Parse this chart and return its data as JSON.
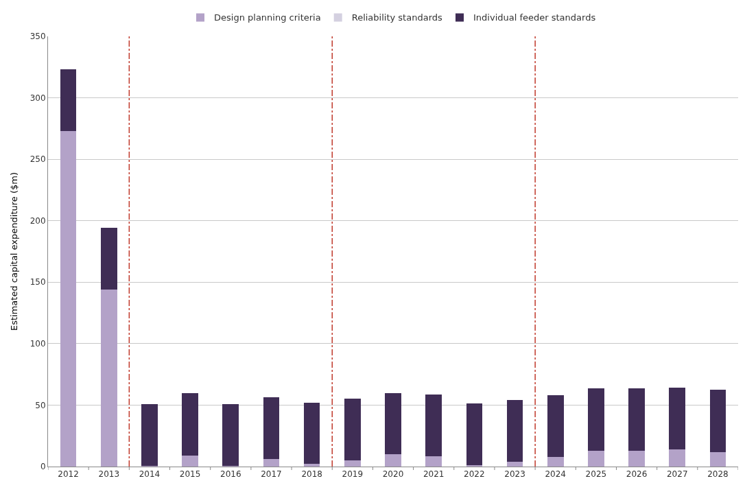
{
  "chart_data": {
    "type": "bar",
    "stacked": true,
    "ylabel": "Estimated capital expenditure ($m)",
    "categories": [
      "2012",
      "2013",
      "2014",
      "2015",
      "2016",
      "2017",
      "2018",
      "2019",
      "2020",
      "2021",
      "2022",
      "2023",
      "2024",
      "2025",
      "2026",
      "2027",
      "2028"
    ],
    "series": [
      {
        "name": "Design planning criteria",
        "color": "#b3a2c8",
        "values": [
          273,
          144,
          0.5,
          9,
          0.5,
          6,
          2,
          5,
          10,
          8.5,
          1,
          4,
          8,
          13,
          13,
          14,
          12
        ]
      },
      {
        "name": "Reliability standards",
        "color": "#d4d0e0",
        "values": [
          0,
          0,
          0,
          0,
          0,
          0,
          0,
          0,
          0,
          0,
          0,
          0,
          0,
          0,
          0,
          0,
          0
        ]
      },
      {
        "name": "Individual feeder standards",
        "color": "#3f2d55",
        "values": [
          50,
          50,
          50.5,
          50.5,
          50.5,
          50.5,
          50,
          50,
          50,
          50,
          50.5,
          50,
          50,
          50.5,
          50.5,
          50,
          50.5
        ]
      }
    ],
    "ylim": [
      0,
      350
    ],
    "yticks": [
      0,
      50,
      100,
      150,
      200,
      250,
      300,
      350
    ],
    "grid": "y",
    "legend": "top"
  }
}
